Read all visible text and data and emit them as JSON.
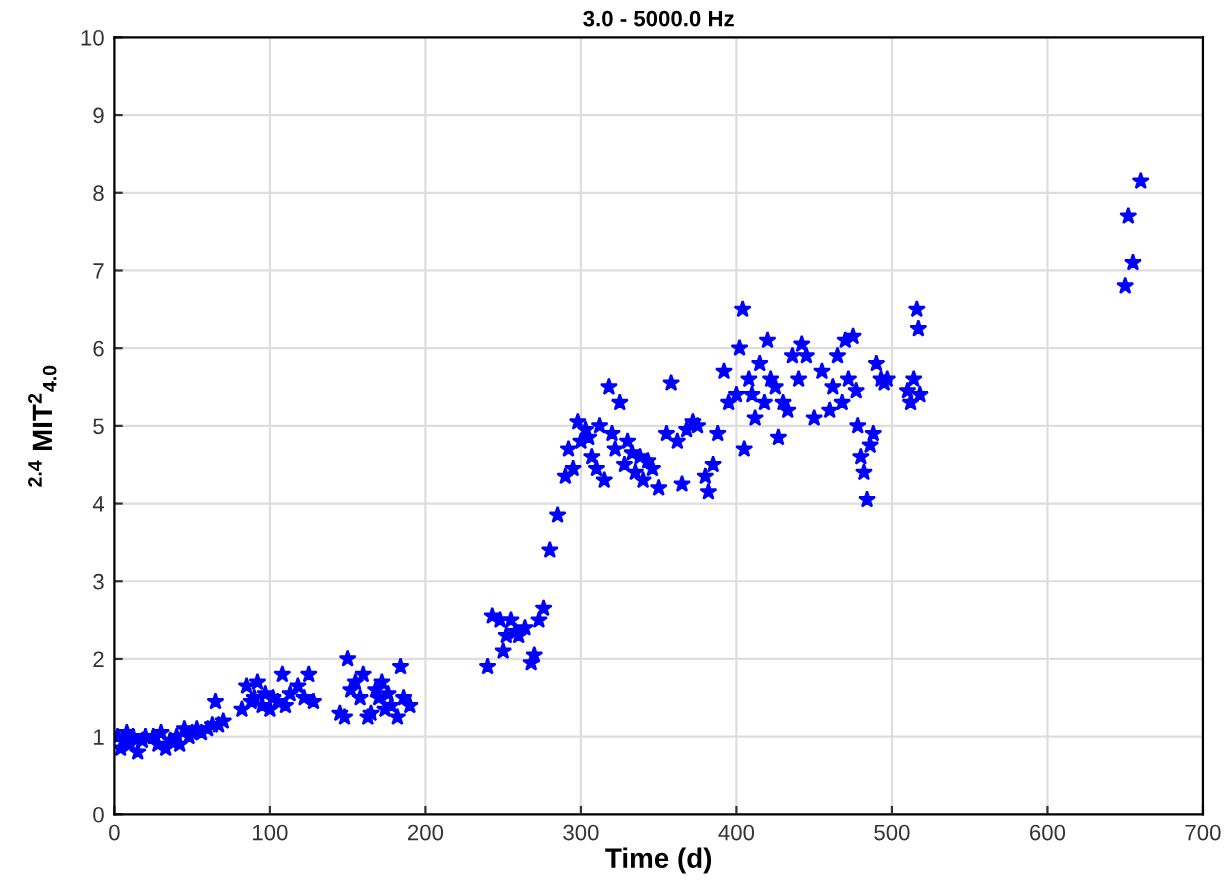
{
  "chart_data": {
    "type": "scatter",
    "title": "3.0 - 5000.0 Hz",
    "xlabel": "Time (d)",
    "ylabel": "$^{2.4}$ MIT$^{2}$$_{4.0}$",
    "xlim": [
      0,
      700
    ],
    "xticks": [
      0,
      100,
      200,
      300,
      400,
      500,
      600,
      700
    ],
    "ylim": [
      0,
      10
    ],
    "yticks": [
      0,
      1,
      2,
      3,
      4,
      5,
      6,
      7,
      8,
      9,
      10
    ],
    "grid": true,
    "marker": "star",
    "series": [
      {
        "color": "#0000ff",
        "x": [
          2,
          4,
          6,
          8,
          10,
          12,
          15,
          18,
          20,
          25,
          28,
          30,
          33,
          36,
          40,
          42,
          45,
          48,
          50,
          53,
          56,
          60,
          63,
          65,
          67,
          70,
          82,
          85,
          88,
          90,
          92,
          95,
          97,
          100,
          102,
          105,
          108,
          110,
          113,
          118,
          122,
          125,
          128,
          145,
          148,
          150,
          152,
          155,
          158,
          160,
          163,
          165,
          168,
          170,
          172,
          174,
          176,
          178,
          182,
          184,
          186,
          190,
          240,
          243,
          248,
          250,
          252,
          255,
          258,
          260,
          264,
          268,
          270,
          273,
          276,
          280,
          285,
          290,
          292,
          295,
          298,
          300,
          303,
          305,
          307,
          310,
          312,
          315,
          318,
          320,
          322,
          325,
          328,
          330,
          333,
          335,
          338,
          340,
          343,
          346,
          350,
          355,
          358,
          362,
          365,
          368,
          372,
          375,
          380,
          382,
          385,
          388,
          392,
          395,
          400,
          402,
          404,
          405,
          408,
          410,
          412,
          415,
          418,
          420,
          422,
          425,
          427,
          430,
          433,
          436,
          440,
          442,
          445,
          450,
          455,
          460,
          462,
          465,
          468,
          470,
          472,
          475,
          477,
          478,
          480,
          482,
          484,
          486,
          488,
          490,
          493,
          495,
          497,
          510,
          512,
          514,
          516,
          517,
          518,
          650,
          652,
          655,
          660
        ],
        "values": [
          1.0,
          0.85,
          0.95,
          1.05,
          0.9,
          1.0,
          0.8,
          0.95,
          1.0,
          1.0,
          0.9,
          1.05,
          0.85,
          0.95,
          1.0,
          0.9,
          1.1,
          1.0,
          1.05,
          1.1,
          1.05,
          1.1,
          1.15,
          1.45,
          1.15,
          1.2,
          1.35,
          1.65,
          1.45,
          1.5,
          1.7,
          1.4,
          1.55,
          1.35,
          1.5,
          1.45,
          1.8,
          1.4,
          1.55,
          1.65,
          1.5,
          1.8,
          1.45,
          1.3,
          1.25,
          2.0,
          1.6,
          1.7,
          1.5,
          1.8,
          1.25,
          1.3,
          1.6,
          1.5,
          1.7,
          1.35,
          1.55,
          1.4,
          1.25,
          1.9,
          1.5,
          1.4,
          1.9,
          2.55,
          2.5,
          2.1,
          2.3,
          2.5,
          2.35,
          2.3,
          2.4,
          1.95,
          2.05,
          2.5,
          2.65,
          3.4,
          3.85,
          4.35,
          4.7,
          4.45,
          5.05,
          4.8,
          4.95,
          4.85,
          4.6,
          4.45,
          5.0,
          4.3,
          5.5,
          4.9,
          4.7,
          5.3,
          4.5,
          4.8,
          4.65,
          4.4,
          4.6,
          4.3,
          4.55,
          4.45,
          4.2,
          4.9,
          5.55,
          4.8,
          4.25,
          4.95,
          5.05,
          5.0,
          4.35,
          4.15,
          4.5,
          4.9,
          5.7,
          5.3,
          5.4,
          6.0,
          6.5,
          4.7,
          5.6,
          5.4,
          5.1,
          5.8,
          5.3,
          6.1,
          5.6,
          5.5,
          4.85,
          5.3,
          5.2,
          5.9,
          5.6,
          6.05,
          5.9,
          5.1,
          5.7,
          5.2,
          5.5,
          5.9,
          5.3,
          6.1,
          5.6,
          6.15,
          5.45,
          5.0,
          4.6,
          4.4,
          4.05,
          4.75,
          4.9,
          5.8,
          5.6,
          5.55,
          5.6,
          5.45,
          5.3,
          5.6,
          6.5,
          6.25,
          5.4,
          6.8,
          7.7,
          7.1,
          8.15
        ]
      }
    ]
  }
}
